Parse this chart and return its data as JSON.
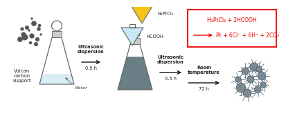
{
  "bg_color": "#ffffff",
  "flask1_liquid_color": "#d8eef5",
  "flask2_liquid_color": "#6a7e85",
  "funnel1_color": "#f5c518",
  "funnel2_color": "#c8e8f5",
  "stopper_color": "#aaaaaa",
  "flask_line_color": "#666666",
  "reaction_box_color": "#ee0000",
  "reaction_text_color": "#ee0000",
  "label_color": "#222222",
  "nanoparticle_color": "#7a8a95",
  "carbon_color": "#555555",
  "step1_label": "Ultrasonic\ndispersion",
  "step1_sub": "0.5 h",
  "step2_label": "Ultrasonic\ndispersion",
  "step2_sub": "0.5 h",
  "step3_label": "Room\ntemperature",
  "step3_sub": "72 h",
  "vulcan_label": "Vulcan\ncarbon\nsupport",
  "water_label": "Water",
  "reagent1_label": "H₂PtCl₆",
  "reagent2_label": "HCOOH",
  "reaction_line1": "H₂PtCl₆ + 2HCOOH",
  "reaction_line2": "Pt + 6Cl⁻ + 6H⁺ + 2CO₂"
}
